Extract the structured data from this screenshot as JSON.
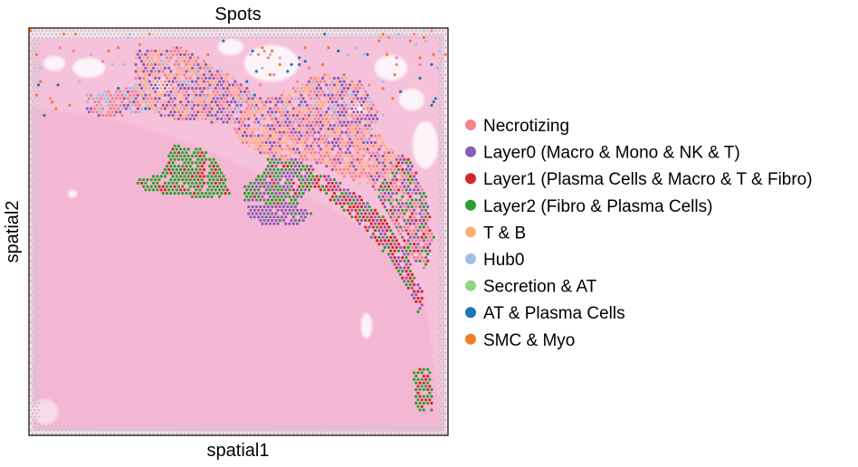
{
  "chart_data": {
    "type": "scatter",
    "title": "Spots",
    "xlabel": "spatial1",
    "ylabel": "spatial2",
    "grid": false,
    "ticks": false,
    "legend_placement": "right",
    "background_image": "H&E tissue section (pink stain)",
    "categories": [
      {
        "name": "Necrotizing",
        "color": "#f7838a"
      },
      {
        "name": "Layer0 (Macro & Mono & NK & T)",
        "color": "#8b5db5"
      },
      {
        "name": "Layer1 (Plasma Cells & Macro & T & Fibro)",
        "color": "#d62728"
      },
      {
        "name": "Layer2 (Fibro & Plasma Cells)",
        "color": "#2ca02c"
      },
      {
        "name": "T & B",
        "color": "#ffb07a"
      },
      {
        "name": "Hub0",
        "color": "#a6bde3"
      },
      {
        "name": "Secretion & AT",
        "color": "#8ed880"
      },
      {
        "name": "AT & Plasma Cells",
        "color": "#1f77b4"
      },
      {
        "name": "SMC & Myo",
        "color": "#f57a28"
      }
    ]
  }
}
